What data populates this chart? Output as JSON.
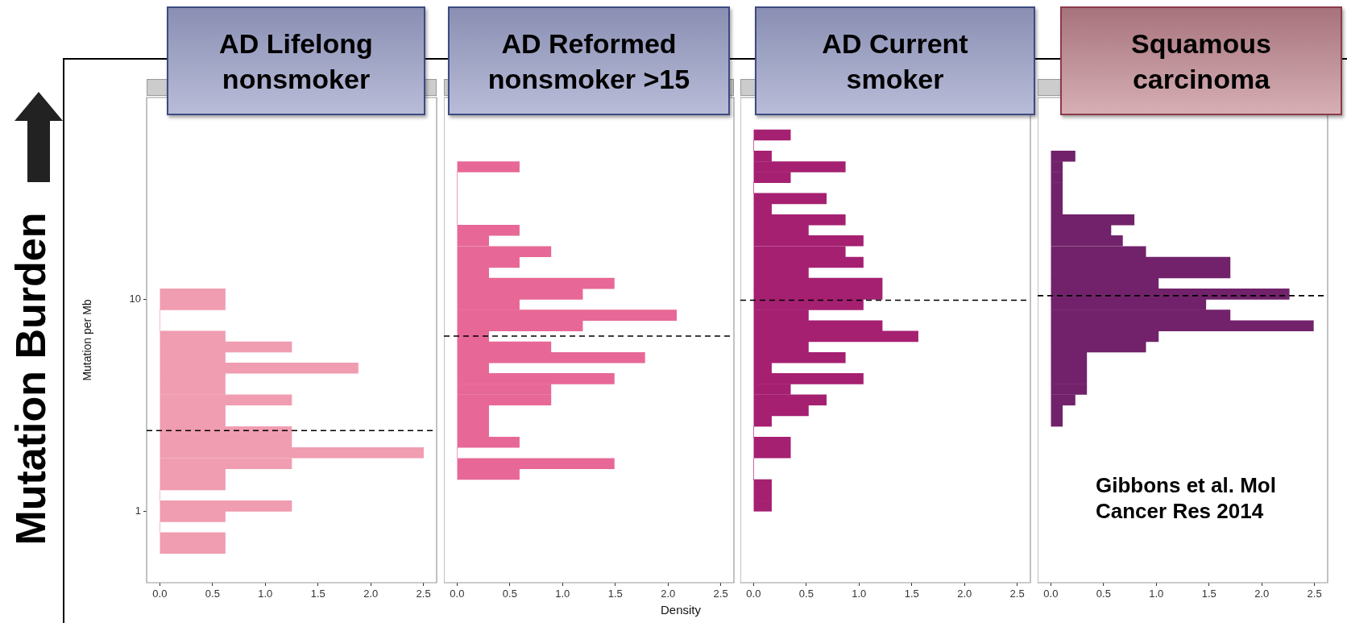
{
  "chart_data": [
    {
      "type": "histogram",
      "orientation": "horizontal",
      "title": "AD Lifelong nonsmoker",
      "ylabel": "Mutation per Mb",
      "annotations": [
        "Mutation Burden"
      ],
      "log": "y",
      "color": "#f09cb1",
      "bins": [
        0.631,
        0.708,
        0.794,
        0.891,
        1,
        1.12,
        1.26,
        1.41,
        1.58,
        1.78,
        2,
        2.24,
        2.51,
        2.82,
        3.16,
        3.55,
        3.98,
        4.47,
        5.01,
        5.62,
        6.31,
        7.08,
        7.94,
        8.91,
        10,
        11.2
      ],
      "values": [
        0.62,
        0.62,
        0,
        0.62,
        1.25,
        0,
        0.62,
        0.62,
        1.25,
        2.5,
        1.25,
        1.25,
        0.62,
        0.62,
        1.25,
        0.62,
        0.62,
        1.88,
        0.62,
        1.25,
        0.62,
        0,
        0,
        0.62,
        0.62
      ],
      "xlim": [
        -0.125,
        2.625
      ],
      "xticks": [
        {
          "value": 0,
          "label": "0.0"
        },
        0.5,
        {
          "value": 1,
          "label": "1.0"
        },
        1.5,
        {
          "value": 2,
          "label": "2.0"
        },
        2.5
      ],
      "ylim": [
        0.46,
        89.5
      ],
      "yticks": [
        1,
        10
      ],
      "ref_lines": [
        {
          "axis": "y",
          "value": 2.4,
          "color": "#000000",
          "line_style": "dashed"
        }
      ]
    },
    {
      "type": "histogram",
      "orientation": "horizontal",
      "title": "AD Reformed nonsmoker >15",
      "xlabel": "Density",
      "log": "y",
      "color": "#e76896",
      "tick_labels": "x",
      "bins": [
        1.41,
        1.58,
        1.78,
        2,
        2.24,
        2.51,
        2.82,
        3.16,
        3.55,
        3.98,
        4.47,
        5.01,
        5.62,
        6.31,
        7.08,
        7.94,
        8.91,
        10,
        11.2,
        12.6,
        14.1,
        15.8,
        17.8,
        20,
        22.4,
        25.1,
        28.2,
        31.6,
        35.5,
        39.8,
        44.7
      ],
      "values": [
        0.59,
        1.49,
        0,
        0.59,
        0.3,
        0.3,
        0.3,
        0.89,
        0.89,
        1.49,
        0.3,
        1.78,
        0.89,
        0.3,
        1.19,
        2.08,
        0.59,
        1.19,
        1.49,
        0.3,
        0.59,
        0.89,
        0.3,
        0.59,
        0,
        0,
        0,
        0,
        0,
        0.59
      ],
      "xlim": [
        -0.125,
        2.625
      ],
      "xticks": [
        {
          "value": 0,
          "label": "0.0"
        },
        0.5,
        {
          "value": 1,
          "label": "1.0"
        },
        1.5,
        {
          "value": 2,
          "label": "2.0"
        },
        2.5
      ],
      "ylim": [
        0.46,
        89.5
      ],
      "ref_lines": [
        {
          "axis": "y",
          "value": 6.7,
          "color": "#000000",
          "line_style": "dashed"
        }
      ]
    },
    {
      "type": "histogram",
      "orientation": "horizontal",
      "title": "AD Current smoker",
      "log": "y",
      "color": "#a52071",
      "tick_labels": "x",
      "bins": [
        1,
        1.12,
        1.26,
        1.41,
        1.58,
        1.78,
        2,
        2.24,
        2.51,
        2.82,
        3.16,
        3.55,
        3.98,
        4.47,
        5.01,
        5.62,
        6.31,
        7.08,
        7.94,
        8.91,
        10,
        11.2,
        12.6,
        14.1,
        15.8,
        17.8,
        20,
        22.4,
        25.1,
        28.2,
        31.6,
        35.5,
        39.8,
        44.7,
        50.1,
        56.2,
        63.1
      ],
      "values": [
        0.17,
        0.17,
        0.17,
        0,
        0,
        0.35,
        0.35,
        0,
        0.17,
        0.52,
        0.69,
        0.35,
        1.04,
        0.17,
        0.87,
        0.52,
        1.56,
        1.22,
        0.52,
        1.04,
        1.22,
        1.22,
        0.52,
        1.04,
        0.87,
        1.04,
        0.52,
        0.87,
        0.17,
        0.69,
        0,
        0.35,
        0.87,
        0.17,
        0,
        0.35
      ],
      "xlim": [
        -0.125,
        2.625
      ],
      "xticks": [
        {
          "value": 0,
          "label": "0.0"
        },
        0.5,
        {
          "value": 1,
          "label": "1.0"
        },
        1.5,
        {
          "value": 2,
          "label": "2.0"
        },
        2.5
      ],
      "ylim": [
        0.46,
        89.5
      ],
      "ref_lines": [
        {
          "axis": "y",
          "value": 9.9,
          "color": "#000000",
          "line_style": "dashed"
        }
      ]
    },
    {
      "type": "histogram",
      "orientation": "horizontal",
      "title": "Squamous carcinoma",
      "annotations": [
        "Gibbons et al. Mol Cancer Res 2014"
      ],
      "log": "y",
      "color": "#72226b",
      "tick_labels": "x",
      "bins": [
        2.51,
        2.82,
        3.16,
        3.55,
        3.98,
        4.47,
        5.01,
        5.62,
        6.31,
        7.08,
        7.94,
        8.91,
        10,
        11.2,
        12.6,
        14.1,
        15.8,
        17.8,
        20,
        22.4,
        25.1,
        28.2,
        31.6,
        35.5,
        39.8,
        44.7,
        50.1
      ],
      "values": [
        0.11,
        0.11,
        0.23,
        0.34,
        0.34,
        0.34,
        0.34,
        0.9,
        1.02,
        2.49,
        1.7,
        1.47,
        2.26,
        1.02,
        1.7,
        1.7,
        0.9,
        0.68,
        0.57,
        0.79,
        0.11,
        0.11,
        0.11,
        0.11,
        0.11,
        0.23
      ],
      "xlim": [
        -0.125,
        2.625
      ],
      "xticks": [
        {
          "value": 0,
          "label": "0.0"
        },
        0.5,
        {
          "value": 1,
          "label": "1.0"
        },
        1.5,
        {
          "value": 2,
          "label": "2.0"
        },
        2.5
      ],
      "ylim": [
        0.46,
        89.5
      ],
      "ref_lines": [
        {
          "axis": "y",
          "value": 10.4,
          "color": "#000000",
          "line_style": "dashed"
        }
      ]
    }
  ]
}
